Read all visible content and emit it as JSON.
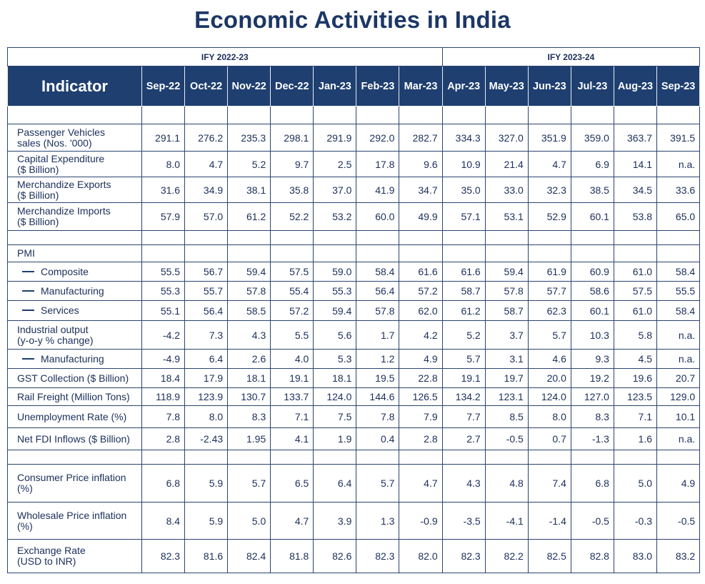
{
  "title": "Economic Activities in India",
  "fiscal_years": [
    "IFY 2022-23",
    "IFY 2023-24"
  ],
  "indicator_header": "Indicator",
  "months": [
    "Sep-22",
    "Oct-22",
    "Nov-22",
    "Dec-22",
    "Jan-23",
    "Feb-23",
    "Mar-23",
    "Apr-23",
    "May-23",
    "Jun-23",
    "Jul-23",
    "Aug-23",
    "Sep-23"
  ],
  "rows": [
    {
      "type": "blank"
    },
    {
      "type": "data",
      "label": [
        "Passenger Vehicles",
        "sales (Nos. '000)"
      ],
      "values": [
        "291.1",
        "276.2",
        "235.3",
        "298.1",
        "291.9",
        "292.0",
        "282.7",
        "334.3",
        "327.0",
        "351.9",
        "359.0",
        "363.7",
        "391.5"
      ]
    },
    {
      "type": "data",
      "label": [
        "Capital Expenditure",
        "($ Billion)"
      ],
      "values": [
        "8.0",
        "4.7",
        "5.2",
        "9.7",
        "2.5",
        "17.8",
        "9.6",
        "10.9",
        "21.4",
        "4.7",
        "6.9",
        "14.1",
        "n.a."
      ]
    },
    {
      "type": "data",
      "label": [
        "Merchandize Exports",
        "($ Billion)"
      ],
      "values": [
        "31.6",
        "34.9",
        "38.1",
        "35.8",
        "37.0",
        "41.9",
        "34.7",
        "35.0",
        "33.0",
        "32.3",
        "38.5",
        "34.5",
        "33.6"
      ]
    },
    {
      "type": "data",
      "label": [
        "Merchandize Imports",
        "($ Billion)"
      ],
      "values": [
        "57.9",
        "57.0",
        "61.2",
        "52.2",
        "53.2",
        "60.0",
        "49.9",
        "57.1",
        "53.1",
        "52.9",
        "60.1",
        "53.8",
        "65.0"
      ]
    },
    {
      "type": "blank"
    },
    {
      "type": "section",
      "label": [
        "PMI"
      ]
    },
    {
      "type": "sub",
      "label": [
        "Composite"
      ],
      "values": [
        "55.5",
        "56.7",
        "59.4",
        "57.5",
        "59.0",
        "58.4",
        "61.6",
        "61.6",
        "59.4",
        "61.9",
        "60.9",
        "61.0",
        "58.4"
      ]
    },
    {
      "type": "sub",
      "label": [
        "Manufacturing"
      ],
      "values": [
        "55.3",
        "55.7",
        "57.8",
        "55.4",
        "55.3",
        "56.4",
        "57.2",
        "58.7",
        "57.8",
        "57.7",
        "58.6",
        "57.5",
        "55.5"
      ]
    },
    {
      "type": "sub",
      "label": [
        "Services"
      ],
      "values": [
        "55.1",
        "56.4",
        "58.5",
        "57.2",
        "59.4",
        "57.8",
        "62.0",
        "61.2",
        "58.7",
        "62.3",
        "60.1",
        "61.0",
        "58.4"
      ]
    },
    {
      "type": "data",
      "label": [
        "Industrial output",
        "(y-o-y % change)"
      ],
      "values": [
        "-4.2",
        "7.3",
        "4.3",
        "5.5",
        "5.6",
        "1.7",
        "4.2",
        "5.2",
        "3.7",
        "5.7",
        "10.3",
        "5.8",
        "n.a."
      ]
    },
    {
      "type": "sub",
      "label": [
        "Manufacturing"
      ],
      "values": [
        "-4.9",
        "6.4",
        "2.6",
        "4.0",
        "5.3",
        "1.2",
        "4.9",
        "5.7",
        "3.1",
        "4.6",
        "9.3",
        "4.5",
        "n.a."
      ]
    },
    {
      "type": "data",
      "label": [
        "GST Collection ($ Billion)"
      ],
      "values": [
        "18.4",
        "17.9",
        "18.1",
        "19.1",
        "18.1",
        "19.5",
        "22.8",
        "19.1",
        "19.7",
        "20.0",
        "19.2",
        "19.6",
        "20.7"
      ]
    },
    {
      "type": "data",
      "label": [
        "Rail Freight (Million Tons)"
      ],
      "values": [
        "118.9",
        "123.9",
        "130.7",
        "133.7",
        "124.0",
        "144.6",
        "126.5",
        "134.2",
        "123.1",
        "124.0",
        "127.0",
        "123.5",
        "129.0"
      ]
    },
    {
      "type": "data",
      "label": [
        "Unemployment Rate (%)"
      ],
      "values": [
        "7.8",
        "8.0",
        "8.3",
        "7.1",
        "7.5",
        "7.8",
        "7.9",
        "7.7",
        "8.5",
        "8.0",
        "8.3",
        "7.1",
        "10.1"
      ]
    },
    {
      "type": "data",
      "label": [
        "Net FDI Inflows ($ Billion)"
      ],
      "values": [
        "2.8",
        "-2.43",
        "1.95",
        "4.1",
        "1.9",
        "0.4",
        "2.8",
        "2.7",
        "-0.5",
        "0.7",
        "-1.3",
        "1.6",
        "n.a."
      ]
    },
    {
      "type": "blank"
    },
    {
      "type": "data",
      "label": [
        "Consumer Price inflation",
        "(%)"
      ],
      "values": [
        "6.8",
        "5.9",
        "5.7",
        "6.5",
        "6.4",
        "5.7",
        "4.7",
        "4.3",
        "4.8",
        "7.4",
        "6.8",
        "5.0",
        "4.9"
      ]
    },
    {
      "type": "data",
      "label": [
        "Wholesale Price inflation",
        "(%)"
      ],
      "values": [
        "8.4",
        "5.9",
        "5.0",
        "4.7",
        "3.9",
        "1.3",
        "-0.9",
        "-3.5",
        "-4.1",
        "-1.4",
        "-0.5",
        "-0.3",
        "-0.5"
      ]
    },
    {
      "type": "data",
      "label": [
        "Exchange Rate",
        "(USD to INR)"
      ],
      "values": [
        "82.3",
        "81.6",
        "82.4",
        "81.8",
        "82.6",
        "82.3",
        "82.0",
        "82.3",
        "82.2",
        "82.5",
        "82.8",
        "83.0",
        "83.2"
      ]
    }
  ],
  "colors": {
    "header_bg": "#1e3f70",
    "text": "#1b2f5a",
    "border": "#2b4470"
  }
}
